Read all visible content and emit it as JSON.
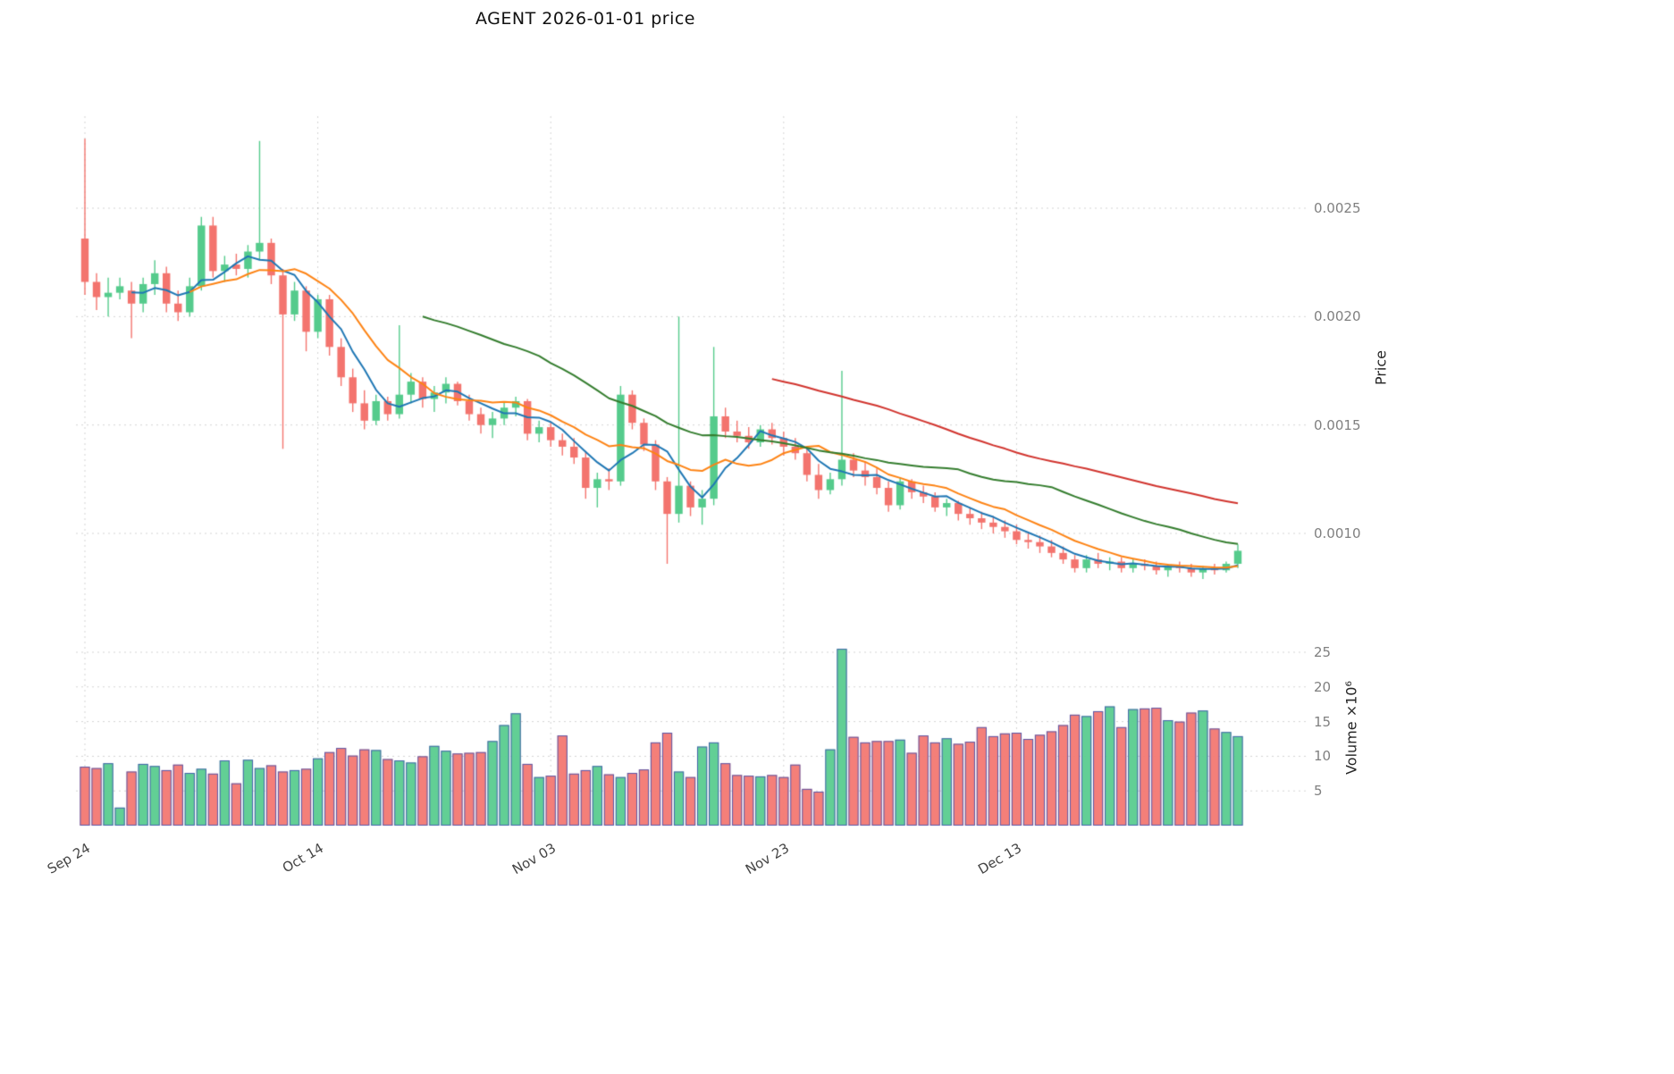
{
  "chart_data": {
    "type": "candlestick",
    "title": "AGENT  2026-01-01  price",
    "ylabel_price": "Price",
    "ylabel_volume": "Volume ×10⁶",
    "x_tick_labels": [
      "Sep 24",
      "Oct 14",
      "Nov 03",
      "Nov 23",
      "Dec 13"
    ],
    "x_tick_indices": [
      0,
      20,
      40,
      60,
      80
    ],
    "price_ticks": [
      0.001,
      0.0015,
      0.002,
      0.0025
    ],
    "volume_ticks": [
      5,
      10,
      15,
      20,
      25
    ],
    "volume_unit": "millions",
    "columns": [
      "open",
      "high",
      "low",
      "close",
      "volume_millions"
    ],
    "candles": [
      [
        0.00236,
        0.00282,
        0.0021,
        0.00216,
        8.5
      ],
      [
        0.00216,
        0.0022,
        0.00203,
        0.00209,
        8.3
      ],
      [
        0.00209,
        0.00218,
        0.002,
        0.00211,
        9.0
      ],
      [
        0.00211,
        0.00218,
        0.00208,
        0.00214,
        2.6
      ],
      [
        0.00212,
        0.00216,
        0.0019,
        0.00206,
        7.8
      ],
      [
        0.00206,
        0.00218,
        0.00202,
        0.00215,
        8.9
      ],
      [
        0.00215,
        0.00226,
        0.0021,
        0.0022,
        8.6
      ],
      [
        0.0022,
        0.00223,
        0.00202,
        0.00206,
        8.0
      ],
      [
        0.00206,
        0.00212,
        0.00198,
        0.00202,
        8.8
      ],
      [
        0.00202,
        0.00218,
        0.002,
        0.00214,
        7.6
      ],
      [
        0.00214,
        0.00246,
        0.00212,
        0.00242,
        8.2
      ],
      [
        0.00242,
        0.00246,
        0.00218,
        0.00221,
        7.5
      ],
      [
        0.00221,
        0.00228,
        0.00216,
        0.00224,
        9.4
      ],
      [
        0.00224,
        0.00229,
        0.00219,
        0.00222,
        6.1
      ],
      [
        0.00222,
        0.00233,
        0.00218,
        0.0023,
        9.5
      ],
      [
        0.0023,
        0.00281,
        0.00226,
        0.00234,
        8.3
      ],
      [
        0.00234,
        0.00236,
        0.00215,
        0.00219,
        8.7
      ],
      [
        0.00219,
        0.00222,
        0.00139,
        0.00201,
        7.8
      ],
      [
        0.00201,
        0.00216,
        0.00198,
        0.00212,
        8.0
      ],
      [
        0.00212,
        0.00214,
        0.00184,
        0.00193,
        8.2
      ],
      [
        0.00193,
        0.0021,
        0.0019,
        0.00208,
        9.7
      ],
      [
        0.00208,
        0.0021,
        0.00182,
        0.00186,
        10.6
      ],
      [
        0.00186,
        0.0019,
        0.00168,
        0.00172,
        11.2
      ],
      [
        0.00172,
        0.00176,
        0.00156,
        0.0016,
        10.1
      ],
      [
        0.0016,
        0.00166,
        0.00148,
        0.00152,
        11.0
      ],
      [
        0.00152,
        0.00164,
        0.0015,
        0.00161,
        10.9
      ],
      [
        0.00161,
        0.00163,
        0.00152,
        0.00155,
        9.6
      ],
      [
        0.00155,
        0.00196,
        0.00153,
        0.00164,
        9.4
      ],
      [
        0.00164,
        0.00174,
        0.0016,
        0.0017,
        9.1
      ],
      [
        0.0017,
        0.00172,
        0.00158,
        0.00162,
        10.0
      ],
      [
        0.00162,
        0.00168,
        0.00156,
        0.00165,
        11.5
      ],
      [
        0.00165,
        0.00172,
        0.0016,
        0.00169,
        10.8
      ],
      [
        0.00169,
        0.0017,
        0.00159,
        0.00161,
        10.4
      ],
      [
        0.00161,
        0.00164,
        0.00152,
        0.00155,
        10.5
      ],
      [
        0.00155,
        0.00158,
        0.00146,
        0.0015,
        10.6
      ],
      [
        0.0015,
        0.00156,
        0.00144,
        0.00153,
        12.2
      ],
      [
        0.00153,
        0.00161,
        0.0015,
        0.00158,
        14.5
      ],
      [
        0.00158,
        0.00163,
        0.00154,
        0.00161,
        16.2
      ],
      [
        0.00161,
        0.00162,
        0.00143,
        0.00146,
        8.9
      ],
      [
        0.00146,
        0.00152,
        0.00142,
        0.00149,
        7.0
      ],
      [
        0.00149,
        0.00151,
        0.0014,
        0.00143,
        7.2
      ],
      [
        0.00143,
        0.00146,
        0.00136,
        0.0014,
        13.0
      ],
      [
        0.0014,
        0.00144,
        0.00132,
        0.00135,
        7.5
      ],
      [
        0.00135,
        0.00138,
        0.00116,
        0.00121,
        8.0
      ],
      [
        0.00121,
        0.00128,
        0.00112,
        0.00125,
        8.6
      ],
      [
        0.00125,
        0.0013,
        0.0012,
        0.00124,
        7.4
      ],
      [
        0.00124,
        0.00168,
        0.00122,
        0.00164,
        7.0
      ],
      [
        0.00164,
        0.00166,
        0.00148,
        0.00151,
        7.6
      ],
      [
        0.00151,
        0.00153,
        0.00138,
        0.00141,
        8.1
      ],
      [
        0.00141,
        0.00143,
        0.0012,
        0.00124,
        12.0
      ],
      [
        0.00124,
        0.00126,
        0.00086,
        0.00109,
        13.4
      ],
      [
        0.00109,
        0.002,
        0.00105,
        0.00122,
        7.8
      ],
      [
        0.00122,
        0.00124,
        0.00108,
        0.00112,
        7.0
      ],
      [
        0.00112,
        0.0012,
        0.00104,
        0.00116,
        11.4
      ],
      [
        0.00116,
        0.00186,
        0.00113,
        0.00154,
        12.0
      ],
      [
        0.00154,
        0.00158,
        0.00144,
        0.00147,
        9.0
      ],
      [
        0.00147,
        0.00152,
        0.00142,
        0.00145,
        7.3
      ],
      [
        0.00145,
        0.00149,
        0.00139,
        0.00142,
        7.2
      ],
      [
        0.00142,
        0.0015,
        0.0014,
        0.00148,
        7.1
      ],
      [
        0.00148,
        0.00151,
        0.00141,
        0.00144,
        7.3
      ],
      [
        0.00144,
        0.00147,
        0.00136,
        0.0014,
        7.0
      ],
      [
        0.0014,
        0.00144,
        0.00134,
        0.00137,
        8.8
      ],
      [
        0.00137,
        0.0014,
        0.00124,
        0.00127,
        5.3
      ],
      [
        0.00127,
        0.00132,
        0.00116,
        0.0012,
        4.9
      ],
      [
        0.0012,
        0.00128,
        0.00118,
        0.00125,
        11.0
      ],
      [
        0.00125,
        0.00175,
        0.00122,
        0.00134,
        25.5
      ],
      [
        0.00134,
        0.00137,
        0.00126,
        0.00129,
        12.8
      ],
      [
        0.00129,
        0.00133,
        0.00122,
        0.00126,
        12.0
      ],
      [
        0.00126,
        0.0013,
        0.00118,
        0.00121,
        12.2
      ],
      [
        0.00121,
        0.00124,
        0.0011,
        0.00113,
        12.2
      ],
      [
        0.00113,
        0.00126,
        0.00111,
        0.00124,
        12.4
      ],
      [
        0.00124,
        0.00125,
        0.00116,
        0.00119,
        10.5
      ],
      [
        0.00119,
        0.00122,
        0.00114,
        0.00117,
        13.0
      ],
      [
        0.00117,
        0.00119,
        0.0011,
        0.00112,
        12.0
      ],
      [
        0.00112,
        0.00116,
        0.00108,
        0.00114,
        12.6
      ],
      [
        0.00114,
        0.00115,
        0.00106,
        0.00109,
        11.8
      ],
      [
        0.00109,
        0.00112,
        0.00104,
        0.00107,
        12.1
      ],
      [
        0.00107,
        0.0011,
        0.00102,
        0.00105,
        14.2
      ],
      [
        0.00105,
        0.00108,
        0.001,
        0.00103,
        12.9
      ],
      [
        0.00103,
        0.00106,
        0.00098,
        0.00101,
        13.3
      ],
      [
        0.00101,
        0.00104,
        0.00095,
        0.00097,
        13.4
      ],
      [
        0.00097,
        0.001,
        0.00093,
        0.00096,
        12.5
      ],
      [
        0.00096,
        0.00099,
        0.00091,
        0.00094,
        13.1
      ],
      [
        0.00094,
        0.00097,
        0.00089,
        0.00091,
        13.6
      ],
      [
        0.00091,
        0.00094,
        0.00086,
        0.00088,
        14.5
      ],
      [
        0.00088,
        0.0009,
        0.00082,
        0.00084,
        16.0
      ],
      [
        0.00084,
        0.0009,
        0.00082,
        0.00088,
        15.8
      ],
      [
        0.00088,
        0.00091,
        0.00084,
        0.00086,
        16.5
      ],
      [
        0.00086,
        0.00089,
        0.00083,
        0.00087,
        17.2
      ],
      [
        0.00087,
        0.00089,
        0.00082,
        0.00084,
        14.2
      ],
      [
        0.00084,
        0.00088,
        0.00082,
        0.00086,
        16.8
      ],
      [
        0.00086,
        0.00088,
        0.00083,
        0.00085,
        16.9
      ],
      [
        0.00085,
        0.00087,
        0.00081,
        0.00083,
        17.0
      ],
      [
        0.00083,
        0.00086,
        0.0008,
        0.00085,
        15.2
      ],
      [
        0.00085,
        0.00087,
        0.00082,
        0.00084,
        15.0
      ],
      [
        0.00084,
        0.00086,
        0.0008,
        0.00082,
        16.3
      ],
      [
        0.00082,
        0.00085,
        0.00079,
        0.00084,
        16.6
      ],
      [
        0.00084,
        0.00086,
        0.00081,
        0.00083,
        14.0
      ],
      [
        0.00083,
        0.00087,
        0.00082,
        0.00086,
        13.5
      ],
      [
        0.00086,
        0.00095,
        0.00084,
        0.00092,
        12.9
      ]
    ],
    "moving_averages": [
      {
        "name": "MA5",
        "window": 5,
        "color": "#1f77b4"
      },
      {
        "name": "MA10",
        "window": 10,
        "color": "#fd8314"
      },
      {
        "name": "MA30",
        "window": 30,
        "color": "#347d2e"
      },
      {
        "name": "MA60",
        "window": 60,
        "color": "#d1342e"
      }
    ],
    "colors": {
      "up": "#55cb8c",
      "down": "#f3746e",
      "up_volume": "rgba(85,203,140,0.92)",
      "down_volume": "rgba(243,116,110,0.92)",
      "volume_edge": "rgba(62,80,176,0.85)",
      "grid": "rgba(0,0,0,0.18)"
    },
    "price_ylim": [
      0.00057,
      0.00292
    ],
    "volume_ylim": [
      0,
      27
    ],
    "grid": "dashed"
  }
}
